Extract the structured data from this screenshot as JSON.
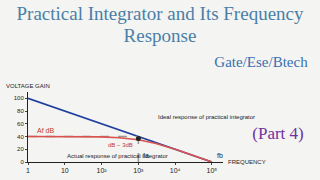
{
  "header": {
    "title": "Practical Integrator and Its Frequency Response",
    "subtitle": "Gate/Ese/Btech",
    "part": "(Part 4)"
  },
  "chart_data": {
    "type": "line",
    "x_label": "FREQUENCY",
    "y_label": "VOLTAGE GAIN",
    "log": "x",
    "grid": false,
    "xlim": [
      1,
      200000
    ],
    "xticks": [
      1,
      10,
      {
        "value": 100,
        "label": "10²"
      },
      {
        "value": 1000,
        "label": "10³"
      },
      {
        "value": 10000,
        "label": "10⁴"
      },
      {
        "value": 100000,
        "label": "10⁵"
      }
    ],
    "ylim": [
      0,
      110
    ],
    "yticks": [
      0,
      20,
      40,
      60,
      80,
      100
    ],
    "series": [
      {
        "color": "#1f3f9f",
        "x": [
          1,
          100000
        ],
        "values": [
          100,
          0
        ]
      },
      {
        "color": "#999999",
        "line_style": "dashed",
        "x": [
          1,
          1000
        ],
        "values": [
          40,
          40
        ]
      },
      {
        "color": "#999999",
        "line_style": "dashed",
        "x": [
          1000,
          1000
        ],
        "values": [
          0,
          37
        ]
      },
      {
        "color": "#d9534f",
        "x": [
          1,
          10,
          100,
          300,
          1000,
          3000,
          10000,
          100000
        ],
        "values": [
          40,
          40,
          39.5,
          38,
          35,
          29,
          20,
          0
        ]
      },
      {
        "type": "scatter",
        "marker": "circle",
        "color": "#222222",
        "x": [
          1000
        ],
        "values": [
          37
        ]
      }
    ],
    "annotations": [
      {
        "text": "Ideal response of practical integrator",
        "x": 3000,
        "y": 70
      },
      {
        "text": "Actual response of practical integrator",
        "x": 10,
        "y": 10
      },
      {
        "text": "Af dB",
        "x": 3,
        "y": 41
      },
      {
        "text": "dB − 3dB",
        "x": 1000,
        "y": 34
      },
      {
        "text": "fa",
        "x": 1000,
        "y": 0
      },
      {
        "text": "fb",
        "x": 100000,
        "y": 0
      }
    ]
  }
}
